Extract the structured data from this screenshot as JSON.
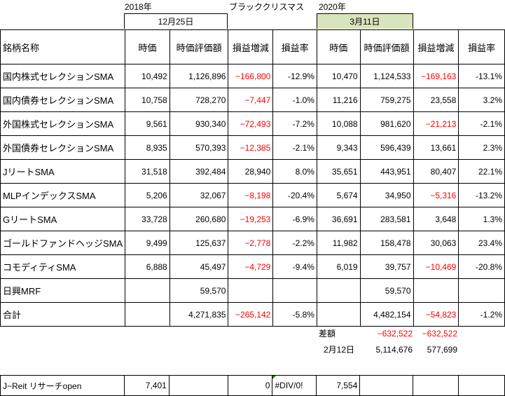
{
  "top": {
    "left_year": "2018年",
    "left_date": "12月25日",
    "event": "ブラッククリスマス",
    "right_year": "2020年",
    "right_date": "3月11日"
  },
  "colors": {
    "negative": "#ff0000",
    "highlight": "#d8e4bc"
  },
  "headers": [
    "銘柄名称",
    "時価",
    "時価評価額",
    "損益増減",
    "損益率",
    "時価",
    "時価評価額",
    "損益増減",
    "損益率"
  ],
  "rows": [
    [
      "国内株式セレクションSMA",
      "10,492",
      "1,126,896",
      "−166,800",
      "-12.9%",
      "10,470",
      "1,124,533",
      "−169,163",
      "-13.1%"
    ],
    [
      "国内債券セレクションSMA",
      "10,758",
      "728,270",
      "−7,447",
      "-1.0%",
      "11,216",
      "759,275",
      "23,558",
      "3.2%"
    ],
    [
      "外国株式セレクションSMA",
      "9,561",
      "930,340",
      "−72,493",
      "-7.2%",
      "10,088",
      "981,620",
      "−21,213",
      "-2.1%"
    ],
    [
      "外国債券セレクションSMA",
      "8,935",
      "570,393",
      "−12,385",
      "-2.1%",
      "9,343",
      "596,439",
      "13,661",
      "2.3%"
    ],
    [
      "JリートSMA",
      "31,518",
      "392,484",
      "28,940",
      "8.0%",
      "35,651",
      "443,951",
      "80,407",
      "22.1%"
    ],
    [
      "MLPインデックスSMA",
      "5,206",
      "32,067",
      "−8,198",
      "-20.4%",
      "5,674",
      "34,950",
      "−5,316",
      "-13.2%"
    ],
    [
      "GリートSMA",
      "33,728",
      "260,680",
      "−19,253",
      "-6.9%",
      "36,691",
      "283,581",
      "3,648",
      "1.3%"
    ],
    [
      "ゴールドファンドヘッジSMA",
      "9,499",
      "125,637",
      "−2,778",
      "-2.2%",
      "11,982",
      "158,478",
      "30,063",
      "23.4%"
    ],
    [
      "コモディティSMA",
      "6,888",
      "45,497",
      "−4,729",
      "-9.4%",
      "6,019",
      "39,757",
      "−10,469",
      "-20.8%"
    ],
    [
      "日興MRF",
      "",
      "59,570",
      "",
      "",
      "",
      "59,570",
      "",
      ""
    ],
    [
      "合計",
      "",
      "4,271,835",
      "−265,142",
      "-5.8%",
      "",
      "4,482,154",
      "−54,823",
      "-1.2%"
    ]
  ],
  "diff": {
    "label": "差額",
    "value1": "−632,522",
    "value2": "−632,522"
  },
  "feb12": {
    "label": "2月12日",
    "value1": "5,114,676",
    "value2": "577,699"
  },
  "jreit": [
    "J−Reit リサーチopen",
    "7,401",
    "",
    "",
    "0",
    "#DIV/0!",
    "7,554",
    "",
    "",
    ""
  ]
}
